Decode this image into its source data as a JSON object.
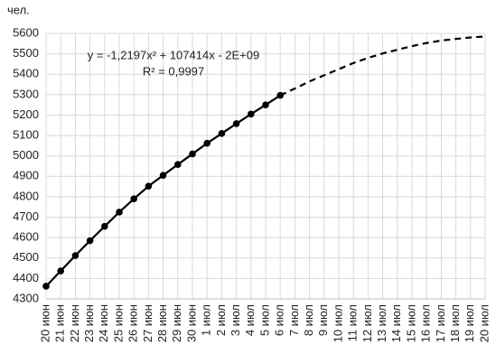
{
  "chart_data": {
    "type": "line",
    "y_label": "чел.",
    "annotations": [
      "y = -1,2197x² + 107414x - 2E+09",
      "R² = 0,9997"
    ],
    "categories": [
      "20 июн",
      "21 июн",
      "22 июн",
      "23 июн",
      "24 июн",
      "25 июн",
      "26 июн",
      "27 июн",
      "28 июн",
      "29 июн",
      "30 июн",
      "1 июл",
      "2 июл",
      "3 июл",
      "4 июл",
      "5 июл",
      "6 июл",
      "7 июл",
      "8 июл",
      "9 июл",
      "10 июл",
      "11 июл",
      "12 июл",
      "13 июл",
      "14 июл",
      "15 июл",
      "16 июл",
      "17 июл",
      "18 июл",
      "19 июл",
      "20 июл"
    ],
    "series": [
      {
        "color": "#000000",
        "style": "solid",
        "markers": true,
        "values": [
          4362,
          4437,
          4512,
          4585,
          4655,
          4725,
          4790,
          4852,
          4905,
          4958,
          5010,
          5062,
          5110,
          5158,
          5205,
          5250,
          5297,
          null,
          null,
          null,
          null,
          null,
          null,
          null,
          null,
          null,
          null,
          null,
          null,
          null,
          null
        ]
      },
      {
        "color": "#000000",
        "style": "dashed",
        "markers": false,
        "values": [
          null,
          null,
          null,
          null,
          null,
          null,
          null,
          null,
          null,
          null,
          null,
          null,
          null,
          null,
          null,
          null,
          5297,
          5330,
          5365,
          5395,
          5425,
          5455,
          5480,
          5502,
          5520,
          5538,
          5553,
          5565,
          5573,
          5580,
          5585
        ]
      }
    ],
    "ylim": [
      4300,
      5600
    ],
    "yticks": [
      4300,
      4400,
      4500,
      4600,
      4700,
      4800,
      4900,
      5000,
      5100,
      5200,
      5300,
      5400,
      5500,
      5600
    ],
    "grid": true
  }
}
